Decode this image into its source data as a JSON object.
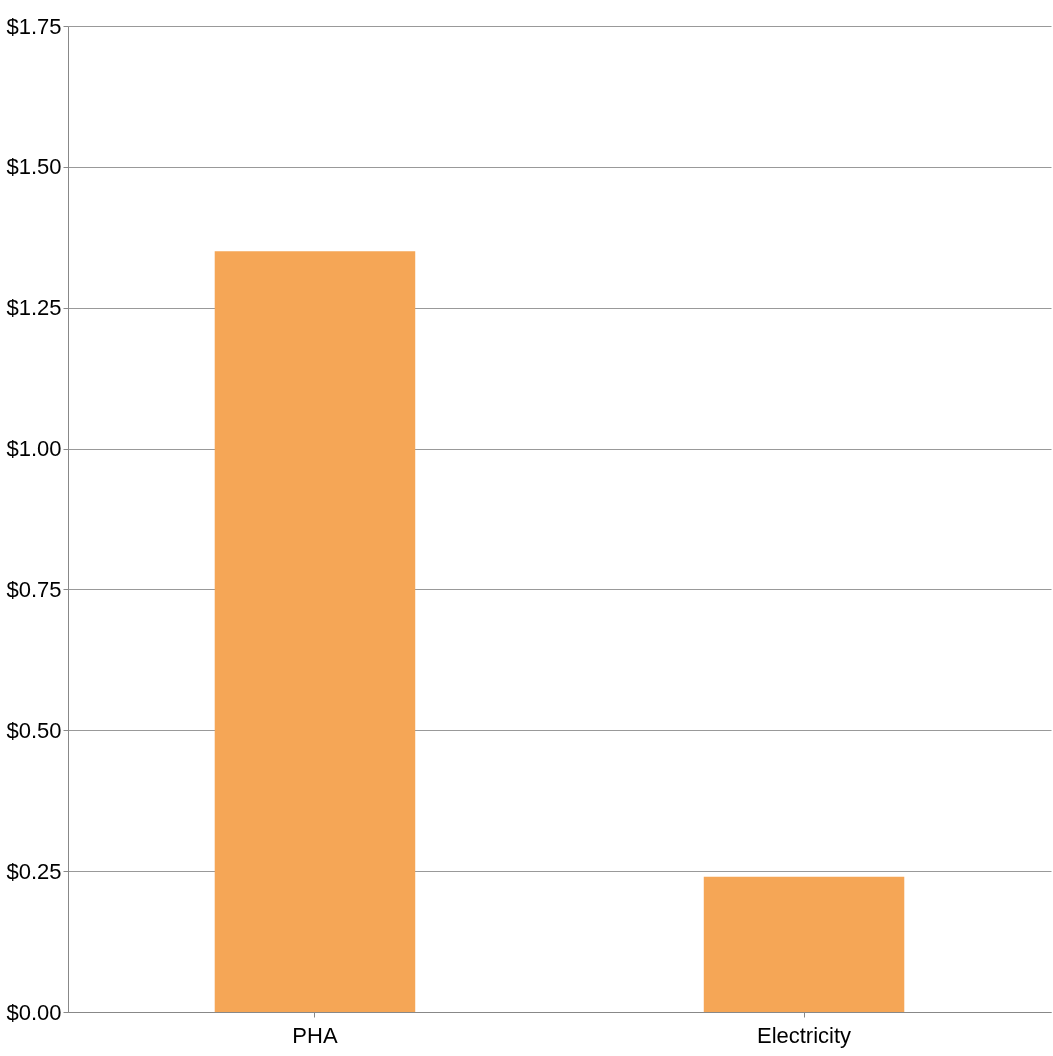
{
  "chart_data": {
    "type": "bar",
    "categories": [
      "PHA",
      "Electricity"
    ],
    "values": [
      1.35,
      0.24
    ],
    "color": "#f5a656",
    "ylim": [
      0,
      1.75
    ],
    "yticks": [
      {
        "value": 0,
        "label": "$0.00"
      },
      {
        "value": 0.25,
        "label": "$0.25"
      },
      {
        "value": 0.5,
        "label": "$0.50"
      },
      {
        "value": 0.75,
        "label": "$0.75"
      },
      {
        "value": 1.0,
        "label": "$1.00"
      },
      {
        "value": 1.25,
        "label": "$1.25"
      },
      {
        "value": 1.5,
        "label": "$1.50"
      },
      {
        "value": 1.75,
        "label": "$1.75"
      }
    ],
    "grid": "y"
  }
}
